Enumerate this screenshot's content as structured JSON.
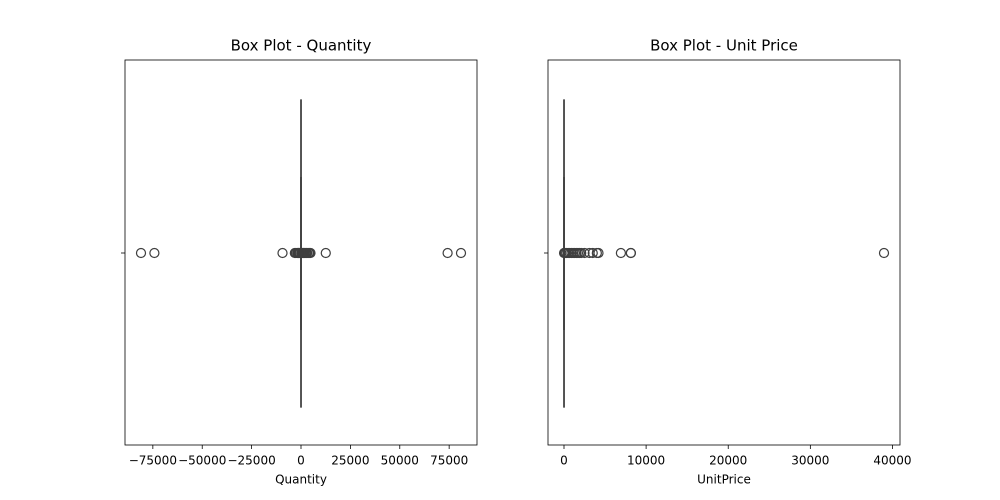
{
  "chart_data": [
    {
      "type": "box",
      "title": "Box Plot - Quantity",
      "xlabel": "Quantity",
      "xlim": [
        -89095,
        89095
      ],
      "xticks": [
        {
          "value": -75000,
          "label": "−75000"
        },
        {
          "value": -50000,
          "label": "−50000"
        },
        {
          "value": -25000,
          "label": "−25000"
        },
        0,
        25000,
        50000,
        75000
      ],
      "box": {
        "whislo": -12,
        "q1": 1,
        "median": 3,
        "q3": 10,
        "whishi": 23
      },
      "outliers": [
        -80995,
        -74215,
        -9360,
        -3114,
        -2600,
        -1930,
        -1515,
        -1350,
        -1000,
        -600,
        100,
        400,
        800,
        1200,
        1500,
        1900,
        2400,
        2880,
        3114,
        3906,
        4300,
        4800,
        12540,
        74215,
        80995
      ],
      "color": "#1f77b4",
      "line_color": "#3f3f3f"
    },
    {
      "type": "box",
      "title": "Box Plot - Unit Price",
      "xlabel": "UnitPrice",
      "xlim": [
        -1948,
        40918
      ],
      "xticks": [
        0,
        10000,
        20000,
        30000,
        40000
      ],
      "box": {
        "whislo": 0,
        "q1": 1.25,
        "median": 2.08,
        "q3": 4.13,
        "whishi": 8.45
      },
      "outliers": [
        9,
        50,
        150,
        300,
        500,
        700,
        900,
        1100,
        1300,
        1500,
        1700,
        1900,
        2100,
        2500,
        3100,
        3500,
        4000,
        4200,
        6930,
        8140,
        8143,
        38970
      ],
      "color": "#1f77b4",
      "line_color": "#3f3f3f"
    }
  ]
}
